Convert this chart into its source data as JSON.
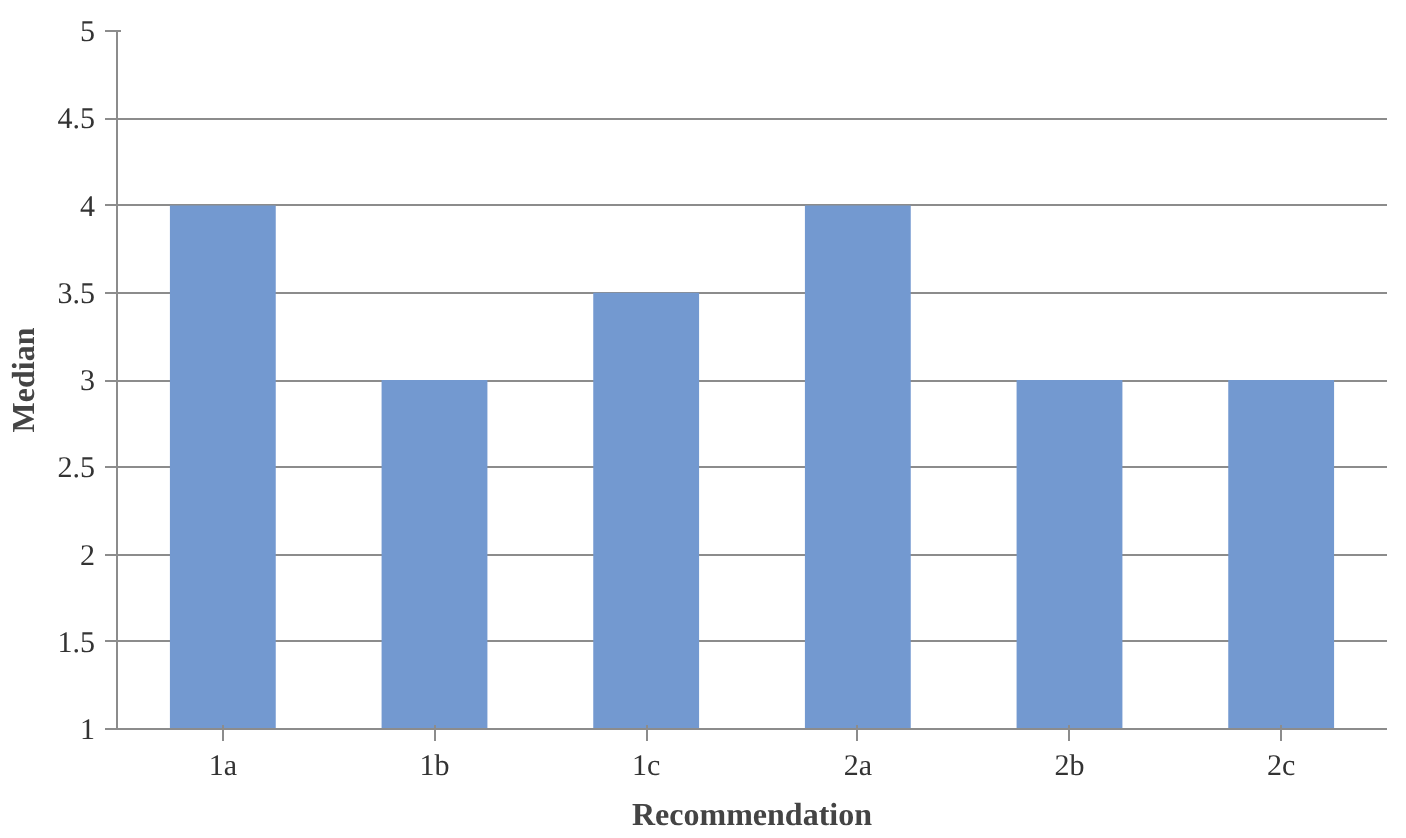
{
  "chart_data": {
    "type": "bar",
    "xlabel": "Recommendation",
    "ylabel": "Median",
    "categories": [
      "1a",
      "1b",
      "1c",
      "2a",
      "2b",
      "2c"
    ],
    "values": [
      4,
      3,
      3.5,
      4,
      3,
      3
    ],
    "color": "#7399d0",
    "ylim": [
      1,
      5
    ],
    "yticks": [
      1,
      {
        "value": 1.5,
        "label": "1.5"
      },
      2,
      {
        "value": 2.5,
        "label": "2.5"
      },
      3,
      {
        "value": 3.5,
        "label": "3.5"
      },
      4,
      {
        "value": 4.5,
        "label": "4.5"
      },
      5
    ],
    "grid": "y"
  }
}
